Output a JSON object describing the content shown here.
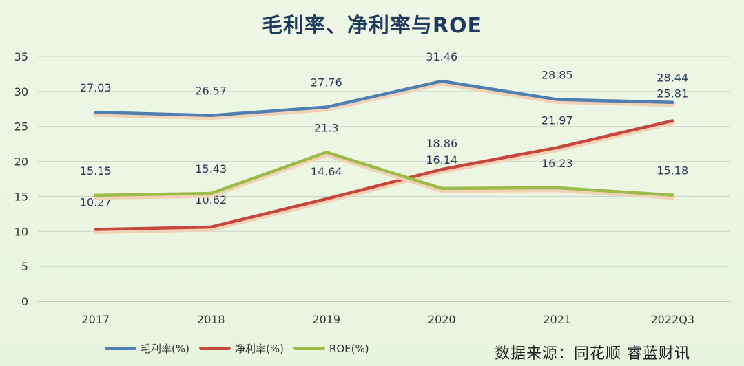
{
  "chart_data": {
    "type": "line",
    "title": "毛利率、净利率与ROE",
    "categories": [
      "2017",
      "2018",
      "2019",
      "2020",
      "2021",
      "2022Q3"
    ],
    "ylim": [
      0,
      35
    ],
    "yticks": [
      0,
      5,
      10,
      15,
      20,
      25,
      30,
      35
    ],
    "grid": true,
    "legend_position": "bottom-left",
    "xlabel": "",
    "ylabel": "",
    "series": [
      {
        "name": "毛利率(%)",
        "color": "#4f7fb0",
        "values": [
          27.03,
          26.57,
          27.76,
          31.46,
          28.85,
          28.44
        ],
        "labels": [
          "27.03",
          "26.57",
          "27.76",
          "31.46",
          "28.85",
          "28.44"
        ]
      },
      {
        "name": "净利率(%)",
        "color": "#c8473d",
        "values": [
          10.27,
          10.62,
          14.64,
          18.86,
          21.97,
          25.81
        ],
        "labels": [
          "10.27",
          "10.62",
          "14.64",
          "18.86",
          "21.97",
          "25.81"
        ]
      },
      {
        "name": "ROE(%)",
        "color": "#9dbb48",
        "values": [
          15.15,
          15.43,
          21.3,
          16.14,
          16.23,
          15.18
        ],
        "labels": [
          "15.15",
          "15.43",
          "21.3",
          "16.14",
          "16.23",
          "15.18"
        ]
      }
    ]
  },
  "source": "数据来源：同花顺  睿蓝财讯"
}
